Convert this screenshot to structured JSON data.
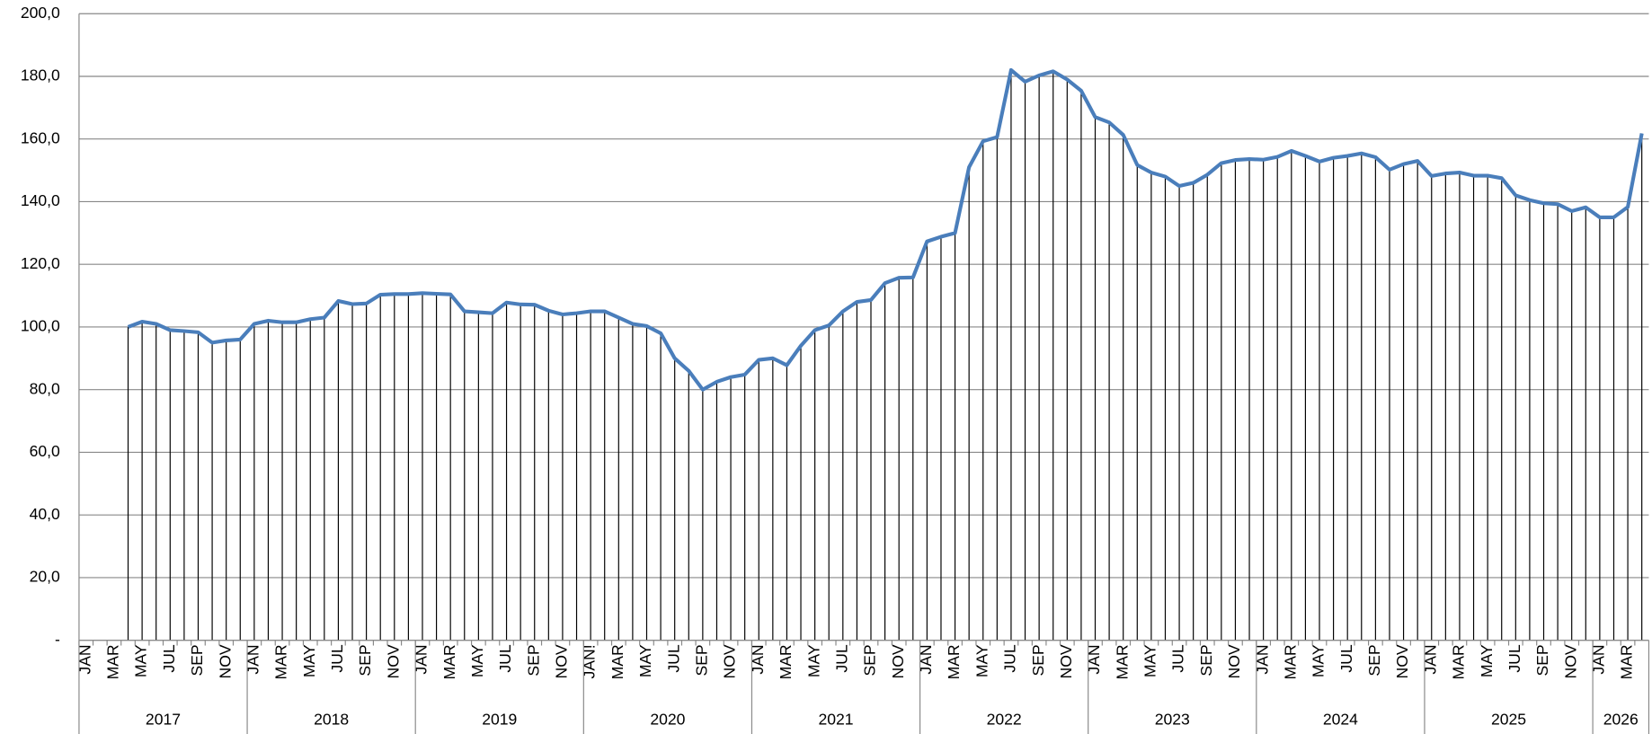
{
  "chart_data": {
    "type": "line",
    "categories": [
      "JAN",
      null,
      "MAR",
      null,
      "MAY",
      null,
      "JUL",
      null,
      "SEP",
      null,
      "NOV",
      null,
      "JAN",
      null,
      "MAR",
      null,
      "MAY",
      null,
      "JUL",
      null,
      "SEP",
      null,
      "NOV",
      null,
      "JAN",
      null,
      "MAR",
      null,
      "MAY",
      null,
      "JUL",
      null,
      "SEP",
      null,
      "NOV",
      null,
      "JAN!",
      null,
      "MAR",
      null,
      "MAY",
      null,
      "JUL",
      null,
      "SEP",
      null,
      "NOV",
      null,
      "JAN",
      null,
      "MAR",
      null,
      "MAY",
      null,
      "JUL",
      null,
      "SEP",
      null,
      "NOV",
      null,
      "JAN",
      null,
      "MAR",
      null,
      "MAY",
      null,
      "JUL",
      null,
      "SEP",
      null,
      "NOV",
      null,
      "JAN",
      null,
      "MAR",
      null,
      "MAY",
      null,
      "JUL",
      null,
      "SEP",
      null,
      "NOV",
      null,
      "JAN",
      null,
      "MAR",
      null,
      "MAY",
      null,
      "JUL",
      null,
      "SEP",
      null,
      "NOV",
      null,
      "JAN",
      null,
      "MAR",
      null,
      "MAY",
      null,
      "JUL",
      null,
      "SEP",
      null,
      "NOV",
      null,
      "JAN",
      null,
      "MAR",
      null
    ],
    "years": [
      "2017",
      "2018",
      "2019",
      "2020",
      "2021",
      "2022",
      "2023",
      "2024",
      "2025",
      "2026"
    ],
    "values": [
      null,
      null,
      null,
      100,
      101.7,
      101,
      99,
      98.7,
      98.3,
      95,
      95.7,
      96,
      101,
      102,
      101.5,
      101.5,
      102.5,
      103,
      108.3,
      107.3,
      107.5,
      110.3,
      110.5,
      110.5,
      110.8,
      110.6,
      110.4,
      105,
      104.7,
      104.4,
      107.8,
      107.2,
      107.1,
      105.2,
      104,
      104.4,
      105,
      105,
      103,
      101,
      100.3,
      98,
      90,
      86,
      80,
      82.5,
      84,
      84.8,
      89.5,
      90,
      87.8,
      94,
      99,
      100.5,
      105,
      108,
      108.6,
      114,
      115.7,
      115.8,
      127.3,
      128.8,
      130,
      151,
      159.3,
      160.6,
      182,
      178.3,
      180.3,
      181.6,
      179,
      175.4,
      167,
      165.3,
      161.3,
      151.7,
      149.3,
      148,
      145,
      146,
      148.6,
      152.3,
      153.3,
      153.6,
      153.4,
      154.3,
      156.2,
      154.6,
      152.8,
      154,
      154.6,
      155.4,
      154.2,
      150.2,
      152,
      153,
      148.2,
      149,
      149.3,
      148.3,
      148.3,
      147.5,
      142,
      140.5,
      139.5,
      139.2,
      137,
      138.2,
      135,
      135,
      138.3,
      161.8
    ],
    "color": "#4a7ebb",
    "ylim": [
      0,
      200
    ],
    "yticks": [
      {
        "value": 0,
        "label": "-"
      },
      {
        "value": 20,
        "label": "20,0"
      },
      {
        "value": 40,
        "label": "40,0"
      },
      {
        "value": 60,
        "label": "60,0"
      },
      {
        "value": 80,
        "label": "80,0"
      },
      {
        "value": 100,
        "label": "100,0"
      },
      {
        "value": 120,
        "label": "120,0"
      },
      {
        "value": 140,
        "label": "140,0"
      },
      {
        "value": 160,
        "label": "160,0"
      },
      {
        "value": 180,
        "label": "180,0"
      },
      {
        "value": 200,
        "label": "200,0"
      }
    ],
    "grid": true
  }
}
